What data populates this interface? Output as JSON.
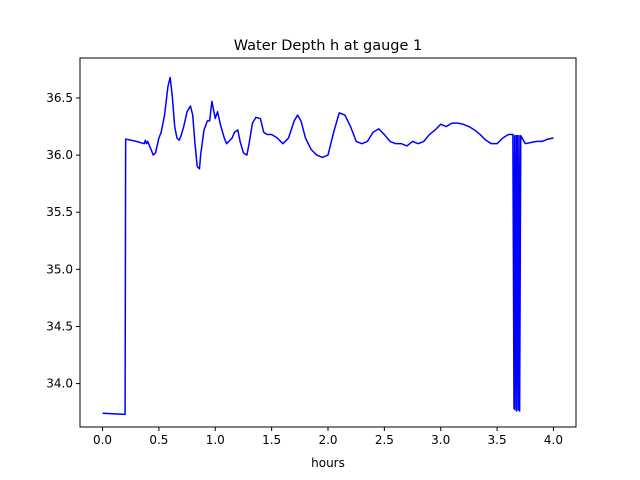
{
  "chart_data": {
    "type": "line",
    "title": "Water Depth h at gauge 1",
    "xlabel": "hours",
    "ylabel": "",
    "xlim": [
      -0.2,
      4.2
    ],
    "ylim": [
      33.62,
      36.85
    ],
    "grid": false,
    "x_ticks": [
      0.0,
      0.5,
      1.0,
      1.5,
      2.0,
      2.5,
      3.0,
      3.5,
      4.0
    ],
    "x_tick_labels": [
      "0.0",
      "0.5",
      "1.0",
      "1.5",
      "2.0",
      "2.5",
      "3.0",
      "3.5",
      "4.0"
    ],
    "y_ticks": [
      34.0,
      34.5,
      35.0,
      35.5,
      36.0,
      36.5
    ],
    "y_tick_labels": [
      "34.0",
      "34.5",
      "35.0",
      "35.5",
      "36.0",
      "36.5"
    ],
    "series": [
      {
        "color": "#0000ff",
        "x": [
          0.0,
          0.2,
          0.205,
          0.3,
          0.37,
          0.38,
          0.39,
          0.4,
          0.43,
          0.45,
          0.47,
          0.5,
          0.52,
          0.55,
          0.58,
          0.6,
          0.62,
          0.64,
          0.66,
          0.68,
          0.7,
          0.72,
          0.75,
          0.78,
          0.8,
          0.82,
          0.84,
          0.86,
          0.87,
          0.9,
          0.93,
          0.95,
          0.97,
          0.98,
          1.0,
          1.02,
          1.05,
          1.08,
          1.1,
          1.12,
          1.15,
          1.17,
          1.2,
          1.22,
          1.25,
          1.28,
          1.3,
          1.33,
          1.36,
          1.4,
          1.43,
          1.46,
          1.5,
          1.55,
          1.6,
          1.65,
          1.7,
          1.73,
          1.76,
          1.8,
          1.85,
          1.9,
          1.95,
          2.0,
          2.05,
          2.1,
          2.15,
          2.2,
          2.25,
          2.3,
          2.35,
          2.4,
          2.45,
          2.5,
          2.55,
          2.6,
          2.65,
          2.7,
          2.75,
          2.8,
          2.85,
          2.9,
          2.95,
          3.0,
          3.05,
          3.1,
          3.15,
          3.2,
          3.25,
          3.3,
          3.35,
          3.4,
          3.45,
          3.5,
          3.55,
          3.6,
          3.64,
          3.65,
          3.655,
          3.66,
          3.67,
          3.675,
          3.68,
          3.69,
          3.695,
          3.7,
          3.71,
          3.75,
          3.8,
          3.85,
          3.9,
          3.95,
          4.0
        ],
        "y": [
          33.74,
          33.73,
          36.14,
          36.12,
          36.1,
          36.13,
          36.1,
          36.12,
          36.05,
          36.0,
          36.02,
          36.15,
          36.2,
          36.35,
          36.6,
          36.68,
          36.5,
          36.25,
          36.15,
          36.13,
          36.18,
          36.25,
          36.38,
          36.43,
          36.35,
          36.1,
          35.9,
          35.88,
          36.0,
          36.22,
          36.3,
          36.3,
          36.47,
          36.42,
          36.32,
          36.38,
          36.25,
          36.15,
          36.1,
          36.12,
          36.15,
          36.2,
          36.22,
          36.12,
          36.02,
          36.0,
          36.1,
          36.28,
          36.33,
          36.32,
          36.2,
          36.18,
          36.18,
          36.15,
          36.1,
          36.15,
          36.3,
          36.35,
          36.3,
          36.15,
          36.05,
          36.0,
          35.98,
          36.0,
          36.2,
          36.37,
          36.35,
          36.25,
          36.12,
          36.1,
          36.12,
          36.2,
          36.23,
          36.18,
          36.12,
          36.1,
          36.1,
          36.08,
          36.12,
          36.1,
          36.12,
          36.18,
          36.22,
          36.27,
          36.25,
          36.28,
          36.28,
          36.27,
          36.25,
          36.22,
          36.18,
          36.13,
          36.1,
          36.1,
          36.15,
          36.18,
          36.18,
          33.78,
          36.17,
          33.77,
          36.17,
          33.76,
          36.17,
          33.77,
          36.17,
          33.76,
          36.17,
          36.1,
          36.11,
          36.12,
          36.12,
          36.14,
          36.15
        ]
      }
    ]
  }
}
